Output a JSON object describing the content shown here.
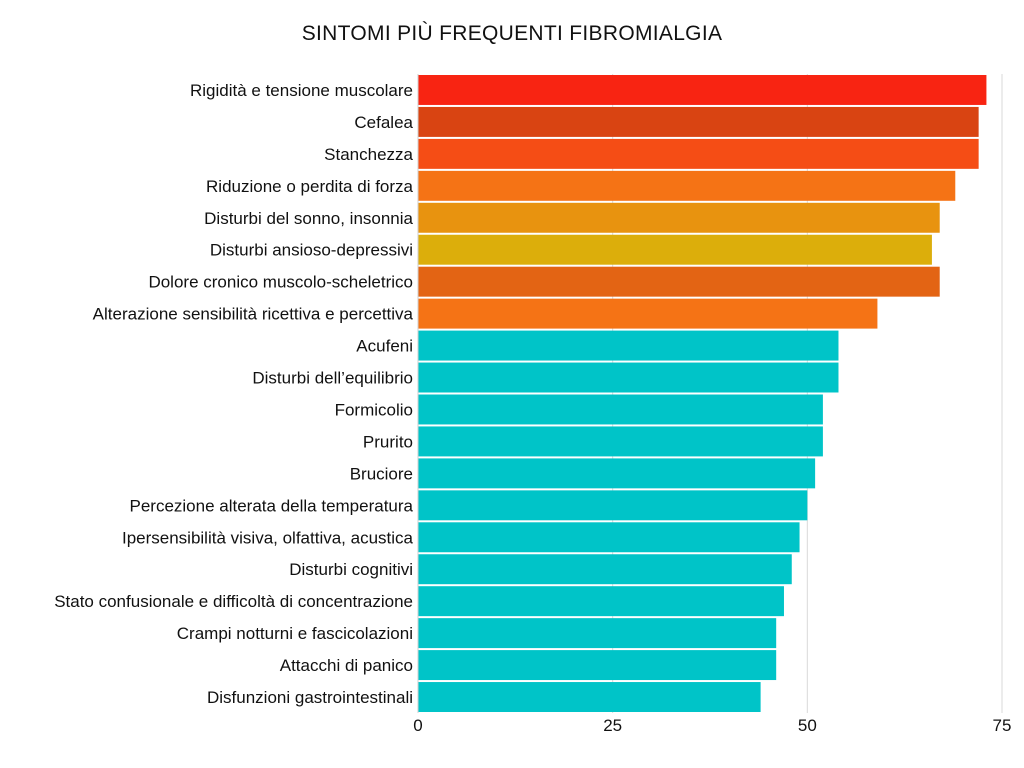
{
  "chart_data": {
    "type": "bar",
    "orientation": "horizontal",
    "title": "SINTOMI PIÙ FREQUENTI FIBROMIALGIA",
    "xlabel": "",
    "ylabel": "",
    "xlim": [
      0,
      75
    ],
    "x_ticks": [
      "0",
      "25",
      "50",
      "75"
    ],
    "grid": "vertical gridlines",
    "categories": [
      "Rigidità e tensione muscolare",
      "Cefalea",
      "Stanchezza",
      "Riduzione o perdita di forza",
      "Disturbi del sonno, insonnia",
      "Disturbi ansioso-depressivi",
      "Dolore cronico muscolo-scheletrico",
      "Alterazione sensibilità ricettiva e percettiva",
      "Acufeni",
      "Disturbi dell’equilibrio",
      "Formicolio",
      "Prurito",
      "Bruciore",
      "Percezione alterata della temperatura",
      "Ipersensibilità visiva, olfattiva, acustica",
      "Disturbi cognitivi",
      "Stato confusionale e difficoltà di concentrazione",
      "Crampi notturni e fascicolazioni",
      "Attacchi di panico",
      "Disfunzioni gastrointestinali"
    ],
    "values": [
      73,
      72,
      72,
      69,
      67,
      66,
      67,
      59,
      54,
      54,
      52,
      52,
      51,
      50,
      49,
      48,
      47,
      46,
      46,
      44
    ],
    "colors": [
      "#f82412",
      "#d94412",
      "#f54d15",
      "#f57315",
      "#e8930f",
      "#dcae0b",
      "#e36414",
      "#f57315",
      "#00c4c8",
      "#00c4c8",
      "#00c4c8",
      "#00c4c8",
      "#00c4c8",
      "#00c4c8",
      "#00c4c8",
      "#00c4c8",
      "#00c4c8",
      "#00c4c8",
      "#00c4c8",
      "#00c4c8"
    ]
  }
}
